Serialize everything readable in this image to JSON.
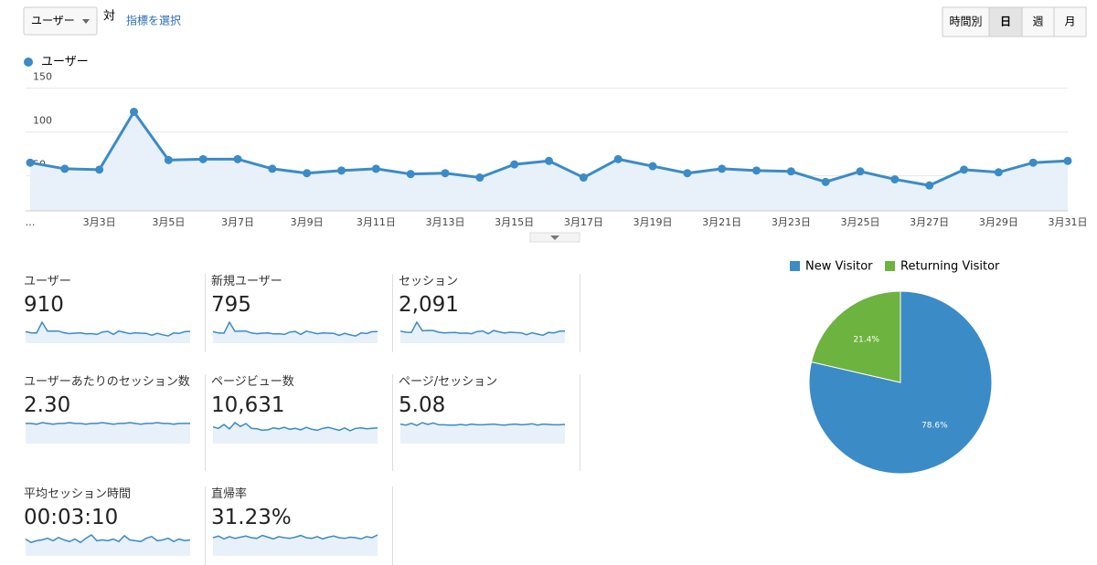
{
  "toolbar": {
    "metric": "ユーザー",
    "versus": "対",
    "select_metric": "指標を選択",
    "buttons": [
      "時間別",
      "日",
      "週",
      "月"
    ],
    "active_button": "日"
  },
  "chart_data": [
    {
      "type": "line",
      "legend": "ユーザー",
      "color": "#3b8bc6",
      "categories": [
        "…",
        null,
        "3月3日",
        null,
        "3月5日",
        null,
        "3月7日",
        null,
        "3月9日",
        null,
        "3月11日",
        null,
        "3月13日",
        null,
        "3月15日",
        null,
        "3月17日",
        null,
        "3月19日",
        null,
        "3月21日",
        null,
        "3月23日",
        null,
        "3月25日",
        null,
        "3月27日",
        null,
        "3月29日",
        null,
        "3月31日"
      ],
      "values": [
        65,
        58,
        57,
        123,
        68,
        69,
        69,
        58,
        53,
        56,
        58,
        52,
        53,
        48,
        63,
        67,
        48,
        69,
        61,
        53,
        58,
        56,
        55,
        43,
        55,
        46,
        39,
        57,
        54,
        65,
        67
      ],
      "ylim": [
        10,
        160
      ],
      "yticks": [
        50,
        100,
        150
      ],
      "grid": true
    },
    {
      "type": "pie",
      "series": [
        {
          "name": "New Visitor",
          "color": "#3b8bc6",
          "value": 78.6,
          "value_label": "78.6%"
        },
        {
          "name": "Returning Visitor",
          "color": "#6db33f",
          "value": 21.4,
          "value_label": "21.4%"
        }
      ]
    }
  ],
  "metrics": [
    {
      "label": "ユーザー",
      "value": "910",
      "sparkline": [
        65,
        58,
        57,
        123,
        68,
        69,
        69,
        58,
        53,
        56,
        58,
        52,
        53,
        48,
        63,
        67,
        48,
        69,
        61,
        53,
        58,
        56,
        55,
        43,
        55,
        46,
        39,
        57,
        54,
        65,
        67
      ]
    },
    {
      "label": "新規ユーザー",
      "value": "795",
      "sparkline": [
        57,
        50,
        49,
        108,
        59,
        60,
        60,
        50,
        46,
        49,
        50,
        45,
        46,
        42,
        55,
        58,
        42,
        60,
        53,
        46,
        50,
        49,
        48,
        37,
        48,
        40,
        34,
        50,
        47,
        57,
        58
      ]
    },
    {
      "label": "セッション",
      "value": "2,091",
      "sparkline": [
        150,
        135,
        133,
        270,
        155,
        160,
        158,
        135,
        125,
        130,
        133,
        122,
        124,
        115,
        145,
        152,
        115,
        158,
        140,
        124,
        135,
        130,
        128,
        102,
        128,
        110,
        95,
        133,
        126,
        148,
        152
      ]
    },
    {
      "label": "ユーザーあたりのセッション数",
      "value": "2.30",
      "sparkline": [
        2.3,
        2.3,
        2.2,
        2.4,
        2.3,
        2.2,
        2.3,
        2.3,
        2.4,
        2.3,
        2.3,
        2.2,
        2.3,
        2.3,
        2.4,
        2.3,
        2.2,
        2.3,
        2.3,
        2.4,
        2.3,
        2.2,
        2.3,
        2.3,
        2.4,
        2.3,
        2.3,
        2.2,
        2.3,
        2.3,
        2.3
      ]
    },
    {
      "label": "ページビュー数",
      "value": "10,631",
      "sparkline": [
        330,
        300,
        380,
        290,
        420,
        340,
        400,
        300,
        290,
        260,
        270,
        310,
        290,
        320,
        280,
        300,
        270,
        320,
        280,
        260,
        300,
        320,
        290,
        260,
        310,
        250,
        300,
        310,
        290,
        300,
        310
      ]
    },
    {
      "label": "ページ/セッション",
      "value": "5.08",
      "sparkline": [
        5.2,
        4.9,
        5.4,
        4.8,
        5.6,
        5.1,
        5.5,
        5.0,
        5.0,
        4.9,
        4.9,
        5.1,
        4.9,
        5.2,
        5.0,
        5.0,
        5.1,
        5.2,
        5.0,
        4.9,
        5.1,
        5.2,
        5.0,
        5.1,
        5.3,
        4.9,
        5.2,
        5.1,
        5.0,
        5.0,
        5.1
      ]
    },
    {
      "label": "平均セッション時間",
      "value": "00:03:10",
      "sparkline": [
        190,
        150,
        170,
        180,
        200,
        170,
        210,
        180,
        160,
        190,
        150,
        200,
        240,
        170,
        180,
        170,
        190,
        160,
        230,
        180,
        170,
        160,
        200,
        220,
        170,
        180,
        200,
        160,
        190,
        170,
        180
      ]
    },
    {
      "label": "直帰率",
      "value": "31.23%",
      "sparkline": [
        30,
        33,
        28,
        32,
        29,
        31,
        33,
        30,
        29,
        34,
        31,
        28,
        32,
        30,
        29,
        31,
        34,
        30,
        29,
        32,
        28,
        31,
        33,
        30,
        29,
        31,
        30,
        28,
        32,
        30,
        35
      ]
    }
  ]
}
